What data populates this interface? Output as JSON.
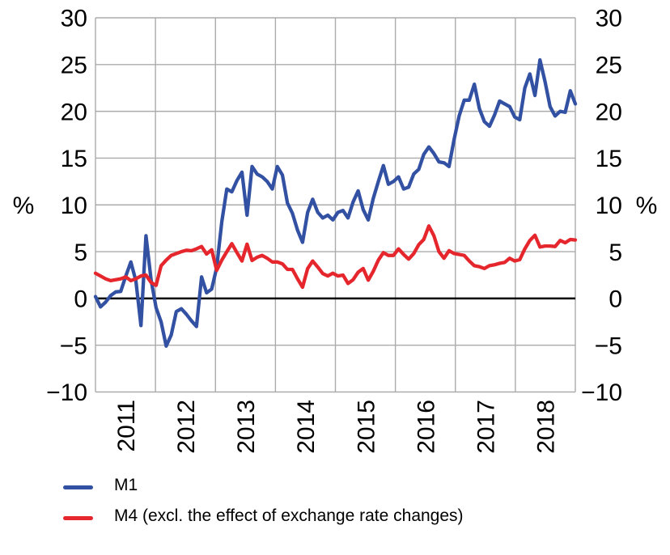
{
  "chart_data": {
    "type": "line",
    "title": "",
    "x_start": "2011-01",
    "x_end": "2018-12",
    "points_per_year": 12,
    "x_tick_labels": [
      "2011",
      "2012",
      "2013",
      "2014",
      "2015",
      "2016",
      "2017",
      "2018"
    ],
    "y_ticks": [
      30,
      25,
      20,
      15,
      10,
      5,
      0,
      -5,
      -10
    ],
    "y_tick_labels": [
      "30",
      "25",
      "20",
      "15",
      "10",
      "5",
      "0",
      "−5",
      "−10"
    ],
    "ylim": [
      -10,
      30
    ],
    "y_unit_left": "%",
    "y_unit_right": "%",
    "grid": true,
    "grid_color": "#ABABAB",
    "zero_line_color": "#000000",
    "legend_position": "bottom-left",
    "series": [
      {
        "name": "M1",
        "color": "#3351A2",
        "values": [
          0.2,
          -0.9,
          -0.4,
          0.3,
          0.7,
          0.75,
          2.4,
          3.9,
          1.9,
          -2.9,
          6.7,
          2.0,
          -1.0,
          -2.5,
          -5.1,
          -3.9,
          -1.4,
          -1.1,
          -1.7,
          -2.4,
          -3.0,
          2.3,
          0.6,
          1.0,
          3.3,
          8.2,
          11.7,
          11.4,
          12.6,
          13.5,
          8.9,
          14.1,
          13.3,
          13.0,
          12.5,
          11.7,
          14.1,
          13.2,
          10.2,
          9.1,
          7.3,
          6.0,
          9.2,
          10.6,
          9.2,
          8.6,
          8.9,
          8.4,
          9.2,
          9.4,
          8.6,
          10.3,
          11.5,
          9.5,
          8.4,
          10.7,
          12.5,
          14.2,
          12.2,
          12.5,
          13.0,
          11.7,
          11.9,
          13.3,
          13.8,
          15.4,
          16.2,
          15.5,
          14.6,
          14.5,
          14.1,
          17.0,
          19.5,
          21.2,
          21.2,
          22.9,
          20.3,
          18.9,
          18.4,
          19.6,
          21.1,
          20.8,
          20.5,
          19.4,
          19.1,
          22.5,
          24.0,
          21.7,
          25.5,
          23.2,
          20.5,
          19.5,
          20.0,
          19.9,
          22.2,
          20.8
        ]
      },
      {
        "name": "M4 (excl. the effect of exchange rate changes)",
        "color": "#E5262D",
        "values": [
          2.7,
          2.4,
          2.1,
          1.9,
          2.0,
          2.1,
          2.3,
          1.9,
          2.1,
          2.4,
          2.5,
          1.7,
          1.4,
          3.5,
          4.1,
          4.6,
          4.8,
          5.0,
          5.15,
          5.1,
          5.3,
          5.55,
          4.75,
          5.2,
          3.0,
          4.1,
          5.0,
          5.85,
          4.9,
          4.0,
          5.8,
          4.05,
          4.4,
          4.6,
          4.3,
          3.9,
          3.9,
          3.7,
          3.1,
          3.1,
          2.1,
          1.2,
          3.2,
          4.0,
          3.35,
          2.65,
          2.4,
          2.7,
          2.4,
          2.5,
          1.6,
          2.0,
          2.8,
          3.2,
          1.95,
          2.9,
          4.1,
          4.9,
          4.6,
          4.6,
          5.3,
          4.7,
          4.2,
          4.8,
          5.75,
          6.3,
          7.75,
          6.7,
          5.0,
          4.3,
          5.1,
          4.8,
          4.7,
          4.6,
          4.0,
          3.5,
          3.4,
          3.2,
          3.5,
          3.6,
          3.75,
          3.85,
          4.3,
          4.0,
          4.15,
          5.3,
          6.2,
          6.75,
          5.5,
          5.6,
          5.6,
          5.55,
          6.2,
          5.95,
          6.3,
          6.25
        ]
      }
    ]
  }
}
